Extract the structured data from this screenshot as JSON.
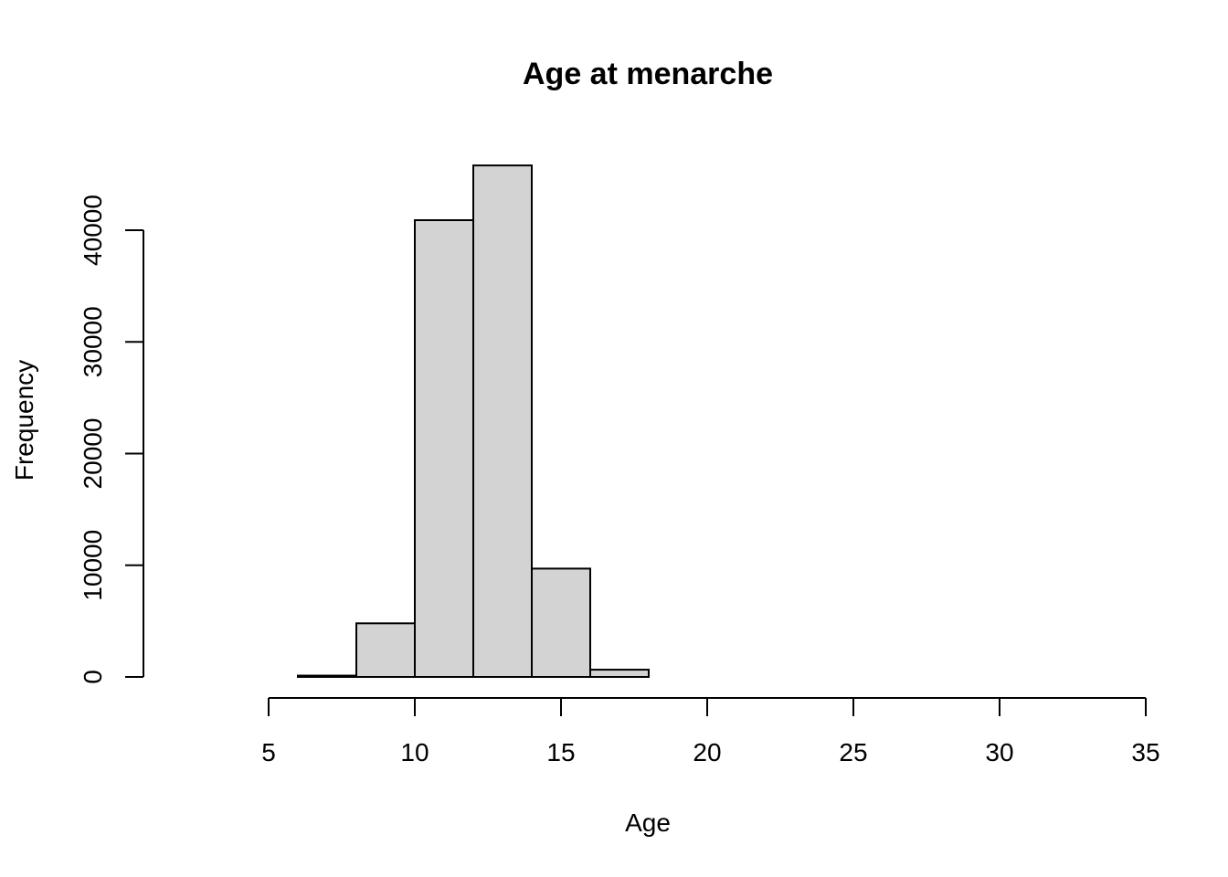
{
  "chart_data": {
    "type": "bar",
    "title": "Age at menarche",
    "xlabel": "Age",
    "ylabel": "Frequency",
    "bin_width": 2,
    "bins": [
      {
        "start": 2,
        "end": 4,
        "count": 0
      },
      {
        "start": 4,
        "end": 6,
        "count": 0
      },
      {
        "start": 6,
        "end": 8,
        "count": 120
      },
      {
        "start": 8,
        "end": 10,
        "count": 4800
      },
      {
        "start": 10,
        "end": 12,
        "count": 40900
      },
      {
        "start": 12,
        "end": 14,
        "count": 45800
      },
      {
        "start": 14,
        "end": 16,
        "count": 9700
      },
      {
        "start": 16,
        "end": 18,
        "count": 650
      },
      {
        "start": 18,
        "end": 20,
        "count": 0
      },
      {
        "start": 20,
        "end": 22,
        "count": 0
      },
      {
        "start": 22,
        "end": 24,
        "count": 0
      },
      {
        "start": 24,
        "end": 26,
        "count": 0
      },
      {
        "start": 26,
        "end": 28,
        "count": 0
      },
      {
        "start": 28,
        "end": 30,
        "count": 0
      },
      {
        "start": 30,
        "end": 32,
        "count": 0
      },
      {
        "start": 32,
        "end": 34,
        "count": 0
      }
    ],
    "xlim": [
      2,
      34
    ],
    "xticks": [
      5,
      10,
      15,
      20,
      25,
      30,
      35
    ],
    "yticks": [
      0,
      10000,
      20000,
      30000,
      40000
    ],
    "bar_color": "#d3d3d3",
    "grid": false,
    "legend": "none"
  }
}
